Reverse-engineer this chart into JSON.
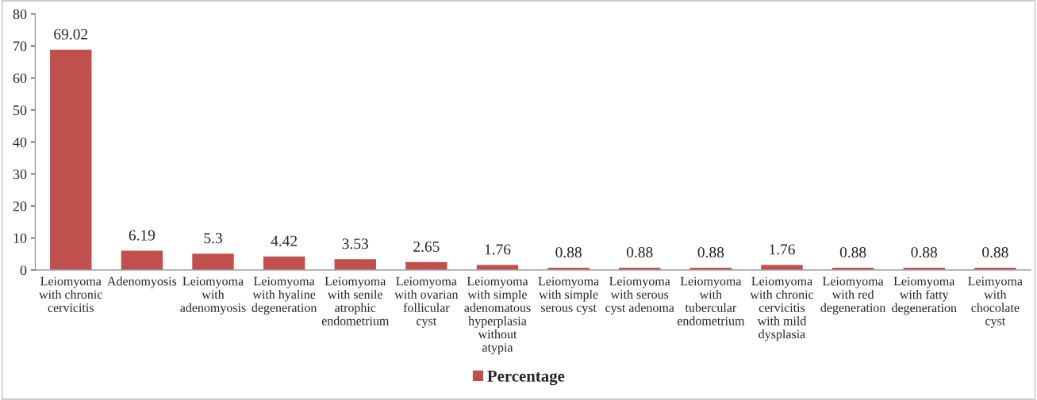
{
  "chart_data": {
    "type": "bar",
    "categories": [
      "Leiomyoma with chronic cervicitis",
      "Adenomyosis",
      "Leiomyoma with adenomyosis",
      "Leiomyoma with hyaline degeneration",
      "Leiomyoma with senile atrophic endometrium",
      "Leiomyoma with ovarian follicular cyst",
      "Leiomyoma with simple adenomatous hyperplasia without atypia",
      "Leiomyoma with simple serous cyst",
      "Leiomyoma with serous cyst adenoma",
      "Leiomyoma with tubercular endometrium",
      "Leiomyoma with chronic cervicitis with mild dysplasia",
      "Leiomyoma with red degeneration",
      "Leiomyoma with fatty degeneration",
      "Leimyoma with chocolate cyst"
    ],
    "series": [
      {
        "name": "Percentage",
        "color": "#c0504d",
        "values": [
          69.02,
          6.19,
          5.3,
          4.42,
          3.53,
          2.65,
          1.76,
          0.88,
          0.88,
          0.88,
          1.76,
          0.88,
          0.88,
          0.88
        ]
      }
    ],
    "ylim": [
      0,
      80
    ],
    "yticks": [
      0,
      10,
      20,
      30,
      40,
      50,
      60,
      70,
      80
    ],
    "grid": false,
    "legend": "bottom",
    "data_labels": true
  }
}
